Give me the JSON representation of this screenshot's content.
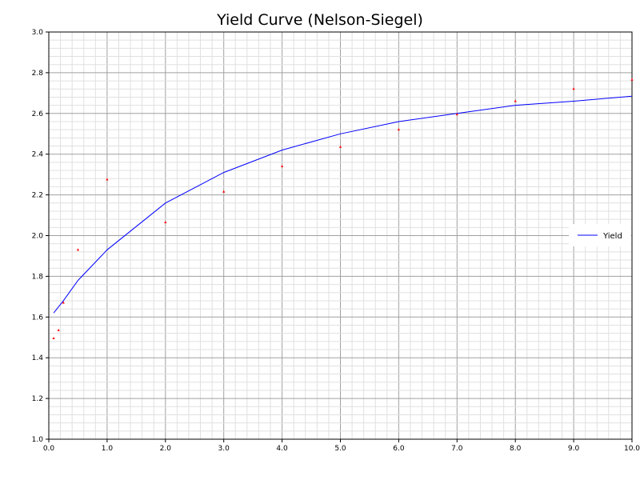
{
  "chart_data": {
    "type": "line",
    "title": "Yield Curve (Nelson-Siegel)",
    "xlabel": "",
    "ylabel": "",
    "xlim": [
      0,
      10
    ],
    "ylim": [
      1.0,
      3.0
    ],
    "x_ticks": [
      "0.0",
      "1.0",
      "2.0",
      "3.0",
      "4.0",
      "5.0",
      "6.0",
      "7.0",
      "8.0",
      "9.0",
      "10.0"
    ],
    "y_ticks": [
      "1.0",
      "1.2",
      "1.4",
      "1.6",
      "1.8",
      "2.0",
      "2.2",
      "2.4",
      "2.6",
      "2.8",
      "3.0"
    ],
    "grid": true,
    "minor_grid": true,
    "legend": {
      "placement": "right",
      "entries": [
        "Yield"
      ]
    },
    "series": [
      {
        "name": "Yield",
        "kind": "line",
        "color": "#0000ff",
        "x": [
          0.083,
          0.25,
          0.5,
          1,
          2,
          3,
          4,
          5,
          6,
          7,
          8,
          9,
          10
        ],
        "y": [
          1.62,
          1.68,
          1.78,
          1.93,
          2.16,
          2.31,
          2.42,
          2.5,
          2.56,
          2.6,
          2.64,
          2.66,
          2.685
        ]
      },
      {
        "kind": "scatter",
        "color": "#ff0000",
        "x": [
          0.083,
          0.167,
          0.25,
          0.5,
          1,
          2,
          3,
          4,
          5,
          6,
          7,
          8,
          9,
          10
        ],
        "y": [
          1.495,
          1.535,
          1.67,
          1.93,
          2.275,
          2.065,
          2.215,
          2.34,
          2.435,
          2.52,
          2.595,
          2.66,
          2.72,
          2.765
        ]
      }
    ]
  }
}
